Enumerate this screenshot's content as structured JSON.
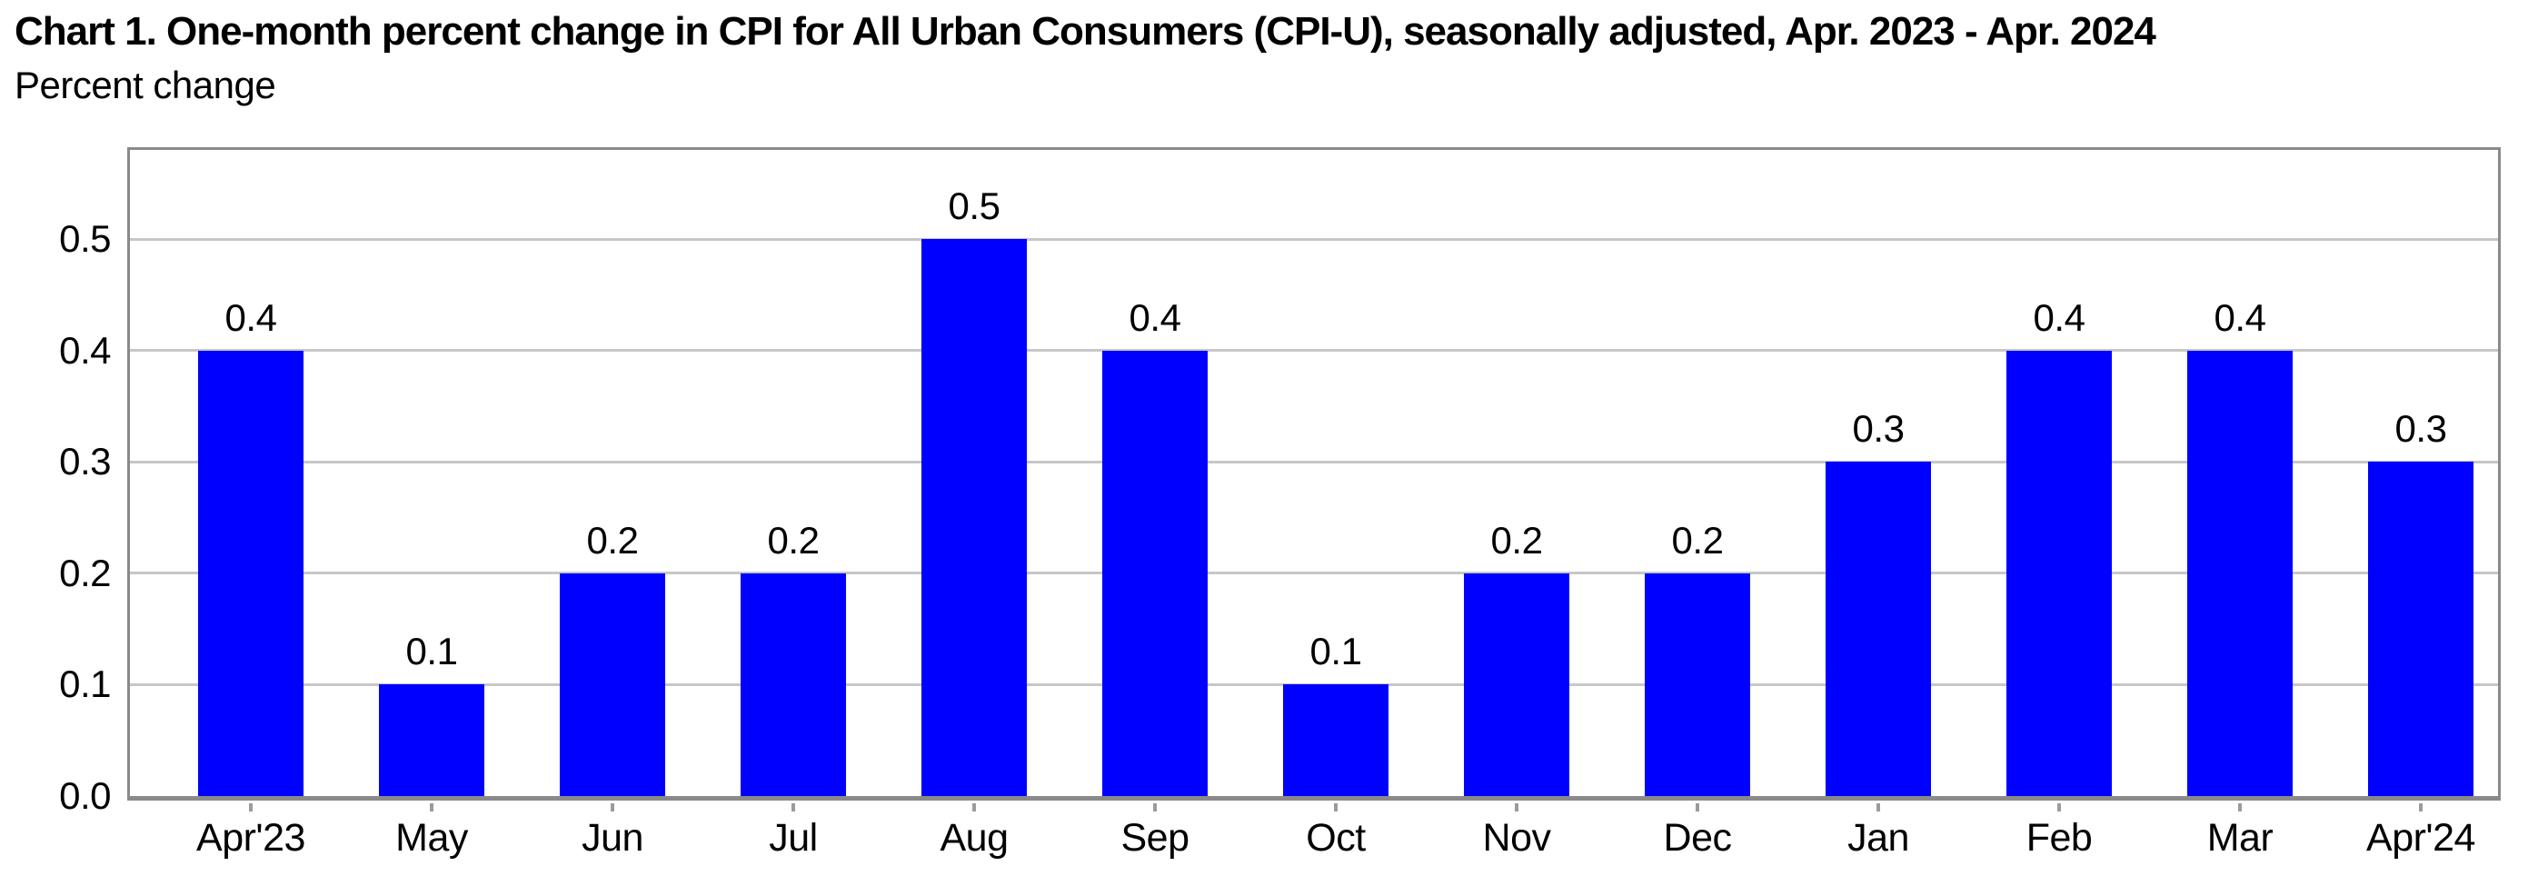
{
  "header": {
    "title": "Chart 1. One-month percent change in CPI for All Urban Consumers (CPI-U), seasonally adjusted, Apr. 2023 - Apr. 2024",
    "subtitle": "Percent change"
  },
  "chart_data": {
    "type": "bar",
    "title": "Chart 1. One-month percent change in CPI for All Urban Consumers (CPI-U), seasonally adjusted, Apr. 2023 - Apr. 2024",
    "ylabel": "Percent change",
    "xlabel": "",
    "categories": [
      "Apr'23",
      "May",
      "Jun",
      "Jul",
      "Aug",
      "Sep",
      "Oct",
      "Nov",
      "Dec",
      "Jan",
      "Feb",
      "Mar",
      "Apr'24"
    ],
    "values": [
      0.4,
      0.1,
      0.2,
      0.2,
      0.5,
      0.4,
      0.1,
      0.2,
      0.2,
      0.3,
      0.4,
      0.4,
      0.3
    ],
    "data_labels": [
      "0.4",
      "0.1",
      "0.2",
      "0.2",
      "0.5",
      "0.4",
      "0.1",
      "0.2",
      "0.2",
      "0.3",
      "0.4",
      "0.4",
      "0.3"
    ],
    "y_ticks": [
      "0.0",
      "0.1",
      "0.2",
      "0.3",
      "0.4",
      "0.5"
    ],
    "ylim": [
      0,
      0.58
    ],
    "grid": "horizontal",
    "legend": "none",
    "colors": {
      "bar": "#0000fe",
      "gridline": "#c7c7c7",
      "axis_border": "#8a8a8a",
      "tick": "#9b9b9b",
      "text": "#000000"
    }
  }
}
